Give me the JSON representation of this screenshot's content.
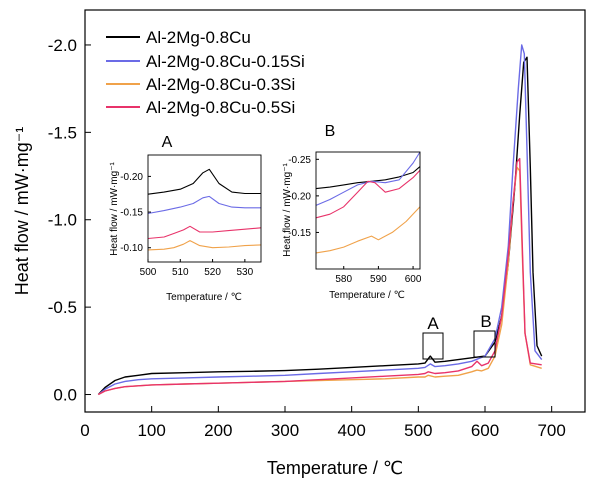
{
  "colors": {
    "Al-2Mg-0.8Cu": "#000000",
    "Al-2Mg-0.8Cu-0.15Si": "#6b6be6",
    "Al-2Mg-0.8Cu-0.3Si": "#f0a24a",
    "Al-2Mg-0.8Cu-0.5Si": "#e8336a"
  },
  "chart_data": [
    {
      "type": "line",
      "xlabel": "Temperature / ℃",
      "ylabel": "Heat flow / mW·mg⁻¹",
      "xlim": [
        0,
        750
      ],
      "ylim": [
        0.1,
        -2.2
      ],
      "y_axis_inverted": true,
      "x_ticks": [
        0,
        100,
        200,
        300,
        400,
        500,
        600,
        700
      ],
      "y_ticks": [
        0.0,
        -0.5,
        -1.0,
        -1.5,
        -2.0
      ],
      "y_tick_labels": [
        "0.0",
        "-0.5",
        "-1.0",
        "-1.5",
        "-2.0"
      ],
      "legend_position": "top-left",
      "markers": [
        {
          "label": "A",
          "x_range": [
            505,
            530
          ],
          "y_range": [
            -0.1,
            -0.28
          ]
        },
        {
          "label": "B",
          "x_range": [
            575,
            605
          ],
          "y_range": [
            -0.12,
            -0.3
          ]
        }
      ],
      "series": [
        {
          "name": "Al-2Mg-0.8Cu",
          "x": [
            20,
            30,
            45,
            60,
            80,
            100,
            150,
            200,
            250,
            300,
            350,
            400,
            450,
            500,
            510,
            518,
            525,
            540,
            560,
            580,
            590,
            600,
            615,
            625,
            635,
            645,
            652,
            658,
            663,
            668,
            672,
            678,
            685
          ],
          "y": [
            0.0,
            -0.04,
            -0.08,
            -0.1,
            -0.11,
            -0.12,
            -0.125,
            -0.13,
            -0.133,
            -0.137,
            -0.145,
            -0.155,
            -0.165,
            -0.175,
            -0.18,
            -0.22,
            -0.185,
            -0.19,
            -0.2,
            -0.21,
            -0.215,
            -0.22,
            -0.3,
            -0.45,
            -0.75,
            -1.2,
            -1.6,
            -1.9,
            -1.93,
            -1.3,
            -0.7,
            -0.28,
            -0.22
          ]
        },
        {
          "name": "Al-2Mg-0.8Cu-0.15Si",
          "x": [
            20,
            30,
            45,
            60,
            80,
            100,
            150,
            200,
            250,
            300,
            350,
            400,
            450,
            500,
            510,
            518,
            525,
            540,
            560,
            580,
            590,
            600,
            615,
            625,
            635,
            642,
            650,
            655,
            659,
            663,
            668,
            675,
            685
          ],
          "y": [
            0.0,
            -0.03,
            -0.06,
            -0.075,
            -0.085,
            -0.09,
            -0.095,
            -0.1,
            -0.105,
            -0.11,
            -0.12,
            -0.13,
            -0.14,
            -0.15,
            -0.155,
            -0.175,
            -0.16,
            -0.165,
            -0.175,
            -0.19,
            -0.205,
            -0.22,
            -0.32,
            -0.5,
            -0.85,
            -1.3,
            -1.75,
            -2.0,
            -1.95,
            -1.4,
            -0.7,
            -0.25,
            -0.2
          ]
        },
        {
          "name": "Al-2Mg-0.8Cu-0.3Si",
          "x": [
            20,
            30,
            45,
            60,
            80,
            100,
            150,
            200,
            250,
            300,
            350,
            400,
            450,
            500,
            510,
            515,
            525,
            540,
            560,
            580,
            588,
            595,
            605,
            615,
            625,
            635,
            642,
            648,
            652,
            656,
            660,
            668,
            685
          ],
          "y": [
            0.0,
            -0.02,
            -0.035,
            -0.045,
            -0.05,
            -0.055,
            -0.06,
            -0.065,
            -0.07,
            -0.075,
            -0.08,
            -0.085,
            -0.09,
            -0.1,
            -0.1,
            -0.11,
            -0.1,
            -0.105,
            -0.11,
            -0.13,
            -0.14,
            -0.135,
            -0.15,
            -0.22,
            -0.4,
            -0.75,
            -1.1,
            -1.3,
            -1.28,
            -0.8,
            -0.35,
            -0.17,
            -0.15
          ]
        },
        {
          "name": "Al-2Mg-0.8Cu-0.5Si",
          "x": [
            20,
            30,
            45,
            60,
            80,
            100,
            150,
            200,
            250,
            300,
            350,
            400,
            450,
            500,
            510,
            515,
            525,
            540,
            560,
            580,
            588,
            595,
            605,
            615,
            625,
            635,
            642,
            648,
            652,
            656,
            660,
            668,
            685
          ],
          "y": [
            0.0,
            -0.02,
            -0.035,
            -0.045,
            -0.05,
            -0.055,
            -0.06,
            -0.065,
            -0.07,
            -0.075,
            -0.085,
            -0.095,
            -0.105,
            -0.115,
            -0.12,
            -0.13,
            -0.12,
            -0.125,
            -0.135,
            -0.16,
            -0.19,
            -0.165,
            -0.18,
            -0.25,
            -0.45,
            -0.8,
            -1.1,
            -1.33,
            -1.35,
            -0.85,
            -0.35,
            -0.18,
            -0.17
          ]
        }
      ]
    },
    {
      "type": "line",
      "title": "A",
      "xlabel": "Temperature / ℃",
      "ylabel": "Heat flow / mW·mg⁻¹",
      "xlim": [
        500,
        535
      ],
      "ylim": [
        -0.08,
        -0.23
      ],
      "x_ticks": [
        500,
        510,
        520,
        530
      ],
      "y_ticks": [
        -0.1,
        -0.15,
        -0.2
      ],
      "y_tick_labels": [
        "-0.10",
        "-0.15",
        "-0.20"
      ],
      "series": [
        {
          "name": "Al-2Mg-0.8Cu",
          "x": [
            500,
            505,
            510,
            514,
            517,
            519,
            522,
            526,
            530,
            535
          ],
          "y": [
            -0.175,
            -0.178,
            -0.182,
            -0.19,
            -0.205,
            -0.21,
            -0.19,
            -0.178,
            -0.176,
            -0.176
          ]
        },
        {
          "name": "Al-2Mg-0.8Cu-0.15Si",
          "x": [
            500,
            505,
            510,
            514,
            517,
            519,
            522,
            526,
            530,
            535
          ],
          "y": [
            -0.148,
            -0.152,
            -0.157,
            -0.162,
            -0.17,
            -0.172,
            -0.162,
            -0.157,
            -0.156,
            -0.156
          ]
        },
        {
          "name": "Al-2Mg-0.8Cu-0.3Si",
          "x": [
            500,
            505,
            508,
            511,
            513,
            516,
            520,
            525,
            530,
            535
          ],
          "y": [
            -0.097,
            -0.098,
            -0.1,
            -0.105,
            -0.11,
            -0.103,
            -0.1,
            -0.101,
            -0.103,
            -0.104
          ]
        },
        {
          "name": "Al-2Mg-0.8Cu-0.5Si",
          "x": [
            500,
            505,
            508,
            511,
            513,
            516,
            520,
            525,
            530,
            535
          ],
          "y": [
            -0.113,
            -0.115,
            -0.12,
            -0.125,
            -0.13,
            -0.122,
            -0.122,
            -0.124,
            -0.126,
            -0.128
          ]
        }
      ]
    },
    {
      "type": "line",
      "title": "B",
      "xlabel": "Temperature / ℃",
      "ylabel": "Heat flow / mW·mg⁻¹",
      "xlim": [
        572,
        602
      ],
      "ylim": [
        -0.1,
        -0.26
      ],
      "x_ticks": [
        580,
        590,
        600
      ],
      "y_ticks": [
        -0.15,
        -0.2,
        -0.25
      ],
      "y_tick_labels": [
        "-0.15",
        "-0.20",
        "-0.25"
      ],
      "series": [
        {
          "name": "Al-2Mg-0.8Cu",
          "x": [
            572,
            576,
            580,
            584,
            588,
            592,
            596,
            600,
            602
          ],
          "y": [
            -0.21,
            -0.212,
            -0.215,
            -0.218,
            -0.22,
            -0.222,
            -0.226,
            -0.232,
            -0.24
          ]
        },
        {
          "name": "Al-2Mg-0.8Cu-0.15Si",
          "x": [
            572,
            576,
            580,
            584,
            588,
            592,
            596,
            600,
            602
          ],
          "y": [
            -0.187,
            -0.195,
            -0.205,
            -0.215,
            -0.22,
            -0.218,
            -0.222,
            -0.245,
            -0.26
          ]
        },
        {
          "name": "Al-2Mg-0.8Cu-0.3Si",
          "x": [
            572,
            576,
            580,
            584,
            588,
            590,
            594,
            598,
            602
          ],
          "y": [
            -0.122,
            -0.125,
            -0.13,
            -0.138,
            -0.145,
            -0.14,
            -0.15,
            -0.165,
            -0.185
          ]
        },
        {
          "name": "Al-2Mg-0.8Cu-0.5Si",
          "x": [
            572,
            576,
            580,
            584,
            587,
            589,
            592,
            596,
            600,
            602
          ],
          "y": [
            -0.17,
            -0.175,
            -0.185,
            -0.205,
            -0.22,
            -0.218,
            -0.205,
            -0.21,
            -0.225,
            -0.235
          ]
        }
      ]
    }
  ]
}
